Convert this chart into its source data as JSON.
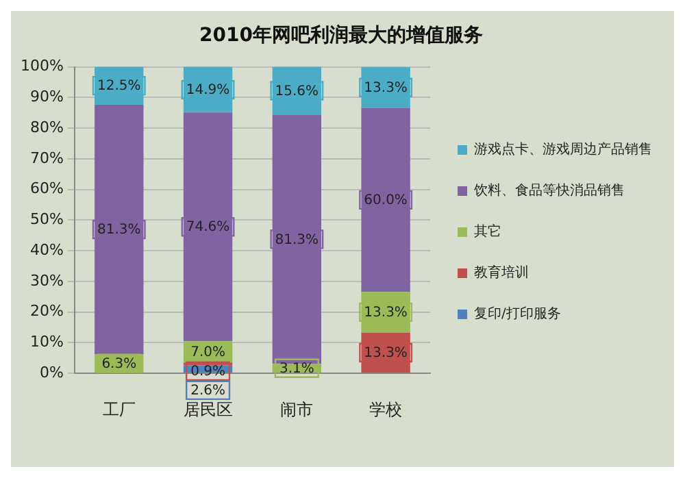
{
  "chart_data": {
    "type": "bar",
    "title": "2010年网吧利润最大的增值服务",
    "stacked": true,
    "categories": [
      "工厂",
      "居民区",
      "闹市",
      "学校"
    ],
    "series": [
      {
        "name": "复印/打印服务",
        "color": "#4f81bd",
        "values": [
          0,
          2.6,
          0,
          0
        ],
        "value_labels": [
          null,
          "2.6%",
          null,
          null
        ]
      },
      {
        "name": "教育培训",
        "color": "#c0504d",
        "values": [
          0,
          0.9,
          0,
          13.3
        ],
        "value_labels": [
          null,
          "0.9%",
          null,
          "13.3%"
        ]
      },
      {
        "name": "其它",
        "color": "#9bbb59",
        "values": [
          6.3,
          7.0,
          3.1,
          13.3
        ],
        "value_labels": [
          "6.3%",
          "7.0%",
          "3.1%",
          "13.3%"
        ]
      },
      {
        "name": "饮料、食品等快消品销售",
        "color": "#8064a2",
        "values": [
          81.3,
          74.6,
          81.3,
          60.0
        ],
        "value_labels": [
          "81.3%",
          "74.6%",
          "81.3%",
          "60.0%"
        ]
      },
      {
        "name": "游戏点卡、游戏周边产品销售",
        "color": "#4bacc6",
        "values": [
          12.5,
          14.9,
          15.6,
          13.3
        ],
        "value_labels": [
          "12.5%",
          "14.9%",
          "15.6%",
          "13.3%"
        ]
      }
    ],
    "ylim": [
      0,
      100
    ],
    "yticks": [
      {
        "value": 0,
        "label": "0%"
      },
      {
        "value": 10,
        "label": "10%"
      },
      {
        "value": 20,
        "label": "20%"
      },
      {
        "value": 30,
        "label": "30%"
      },
      {
        "value": 40,
        "label": "40%"
      },
      {
        "value": 50,
        "label": "50%"
      },
      {
        "value": 60,
        "label": "60%"
      },
      {
        "value": 70,
        "label": "70%"
      },
      {
        "value": 80,
        "label": "80%"
      },
      {
        "value": 90,
        "label": "90%"
      },
      {
        "value": 100,
        "label": "100%"
      }
    ],
    "grid": "y",
    "legend": "right"
  }
}
